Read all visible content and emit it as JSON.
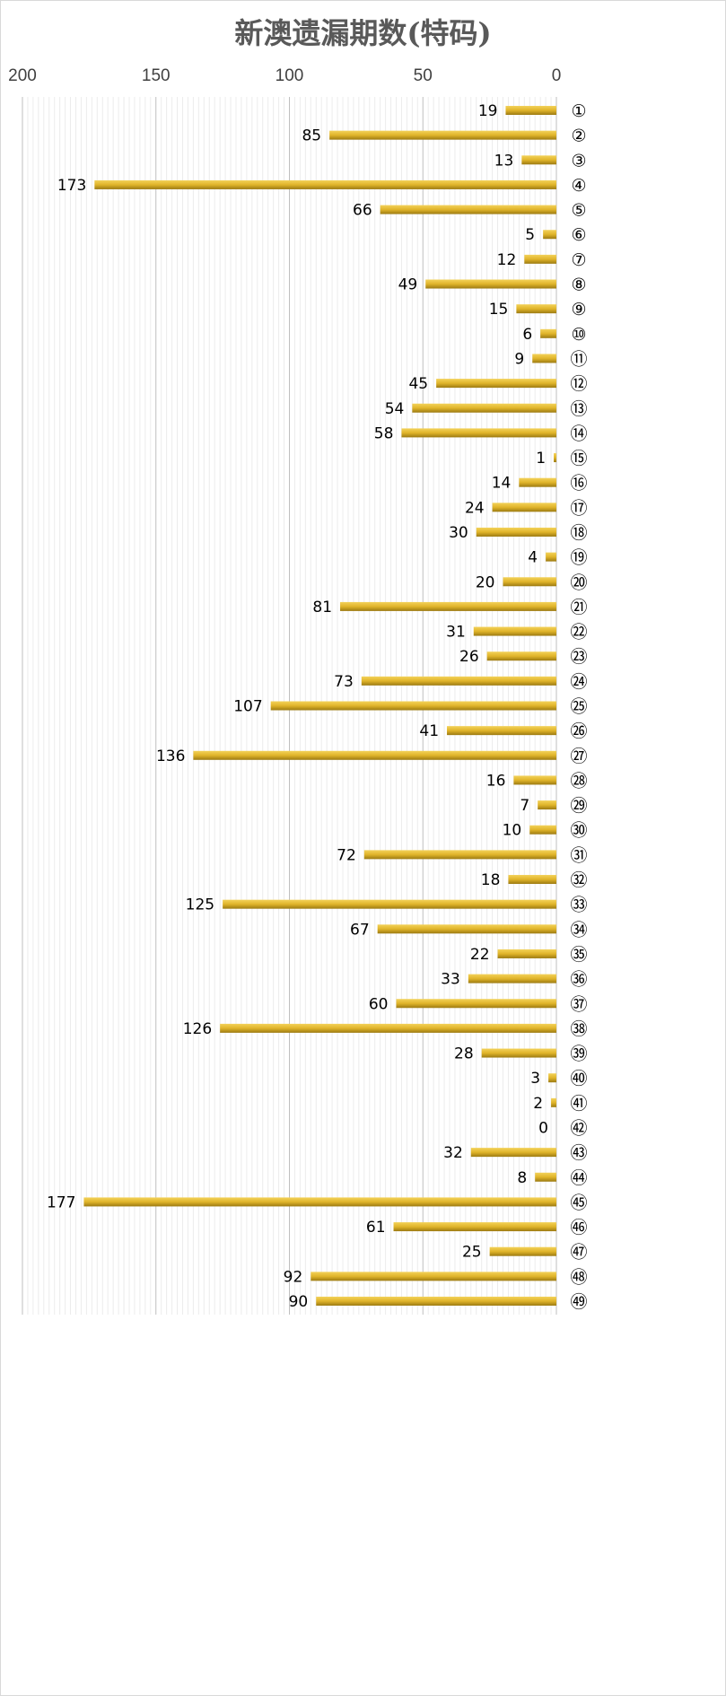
{
  "chart_data": {
    "type": "bar",
    "orientation": "horizontal",
    "title": "新澳遗漏期数(特码)",
    "x_axis": {
      "reversed": true,
      "range": [
        0,
        200
      ],
      "ticks": [
        "0",
        "50",
        "100",
        "150",
        "200"
      ],
      "position": "top"
    },
    "grid": true,
    "bar_color": "#d4a820",
    "categories": [
      "①",
      "②",
      "③",
      "④",
      "⑤",
      "⑥",
      "⑦",
      "⑧",
      "⑨",
      "⑩",
      "⑪",
      "⑫",
      "⑬",
      "⑭",
      "⑮",
      "⑯",
      "⑰",
      "⑱",
      "⑲",
      "⑳",
      "㉑",
      "㉒",
      "㉓",
      "㉔",
      "㉕",
      "㉖",
      "㉗",
      "㉘",
      "㉙",
      "㉚",
      "㉛",
      "㉜",
      "㉝",
      "㉞",
      "㉟",
      "㊱",
      "㊲",
      "㊳",
      "㊴",
      "㊵",
      "㊶",
      "㊷",
      "㊸",
      "㊹",
      "㊺",
      "㊻",
      "㊼",
      "㊽",
      "㊾"
    ],
    "values": [
      19,
      85,
      13,
      173,
      66,
      5,
      12,
      49,
      15,
      6,
      9,
      45,
      54,
      58,
      1,
      14,
      24,
      30,
      4,
      20,
      81,
      31,
      26,
      73,
      107,
      41,
      136,
      16,
      7,
      10,
      72,
      18,
      125,
      67,
      22,
      33,
      60,
      126,
      28,
      3,
      2,
      0,
      32,
      8,
      177,
      61,
      25,
      92,
      90
    ]
  }
}
